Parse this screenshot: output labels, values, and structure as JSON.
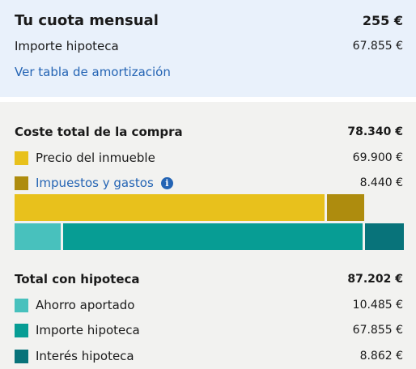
{
  "summary": {
    "title": "Tu cuota mensual",
    "monthly_payment": "255 €",
    "mortgage_label": "Importe hipoteca",
    "mortgage_value": "67.855 €",
    "amortization_link": "Ver tabla de amortización"
  },
  "purchase": {
    "title": "Coste total de la compra",
    "total": "78.340 €",
    "items": [
      {
        "label": "Precio del inmueble",
        "value": "69.900 €",
        "color": "#e8c11c"
      },
      {
        "label": "Impuestos y gastos",
        "value": "8.440 €",
        "color": "#ae8c0e",
        "info_icon": "info-icon"
      }
    ],
    "bar_fractions": [
      0.892,
      0.108
    ]
  },
  "mortgage_total": {
    "title": "Total con hipoteca",
    "total": "87.202 €",
    "items": [
      {
        "label": "Ahorro aportado",
        "value": "10.485 €",
        "color": "#48c1bd"
      },
      {
        "label": "Importe hipoteca",
        "value": "67.855 €",
        "color": "#079d94"
      },
      {
        "label": "Interés hipoteca",
        "value": "8.862 €",
        "color": "#08737a"
      }
    ],
    "bar_fractions": [
      0.12,
      0.778,
      0.102
    ]
  }
}
